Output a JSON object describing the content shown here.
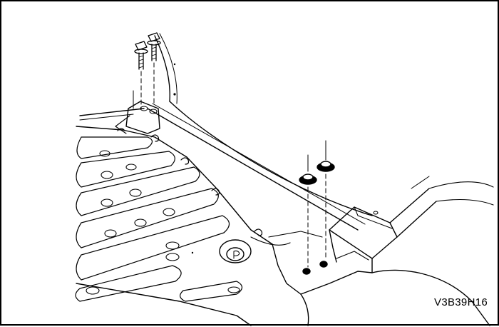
{
  "figure": {
    "code": "V3B39H16",
    "colors": {
      "ink": "#000000",
      "paper": "#ffffff"
    },
    "parts": {
      "bolts": 2,
      "nuts_with_washers": 2
    }
  }
}
